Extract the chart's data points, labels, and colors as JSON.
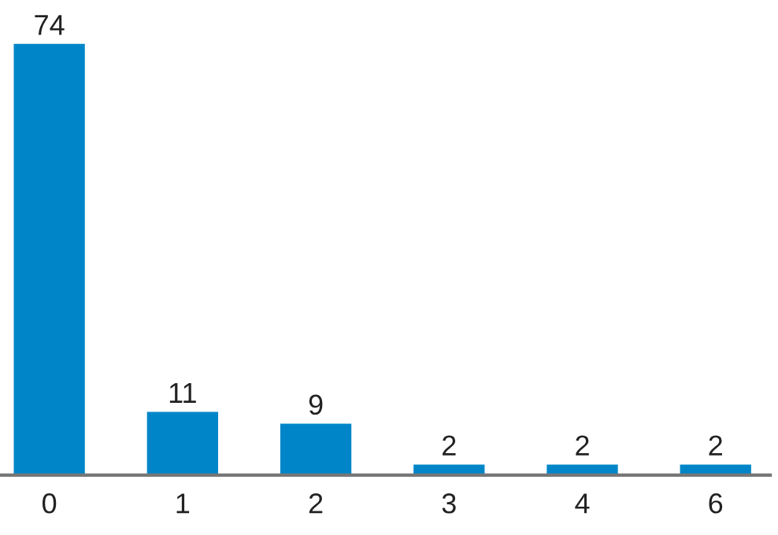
{
  "chart_data": {
    "type": "bar",
    "categories": [
      "0",
      "1",
      "2",
      "3",
      "4",
      "6"
    ],
    "values": [
      74,
      11,
      9,
      2,
      2,
      2
    ],
    "color": "#0086c8",
    "data_labels": true,
    "grid": false,
    "legend": false
  }
}
